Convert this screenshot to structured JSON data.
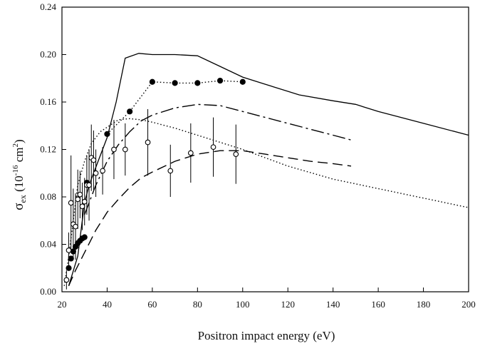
{
  "chart_data": {
    "type": "line",
    "xlabel": "Positron impact energy (eV)",
    "ylabel": {
      "main": "σ",
      "sub": "ex",
      "pre": " (10",
      "sup1": "-16",
      "mid": " cm",
      "sup2": "2",
      "post": ")"
    },
    "xlim": [
      20,
      200
    ],
    "ylim": [
      0.0,
      0.24
    ],
    "x_ticks": [
      20,
      40,
      60,
      80,
      100,
      120,
      140,
      160,
      180,
      200
    ],
    "y_ticks": [
      0.0,
      0.04,
      0.08,
      0.12,
      0.16,
      0.2,
      0.24
    ],
    "y_tick_labels": [
      "0.00",
      "0.04",
      "0.08",
      "0.12",
      "0.16",
      "0.20",
      "0.24"
    ],
    "grid": false,
    "series": [
      {
        "style": "solid",
        "x": [
          23,
          27,
          30,
          32,
          35,
          40,
          44,
          48,
          54,
          60,
          70,
          80,
          90,
          100,
          110,
          125,
          140,
          150,
          160,
          180,
          200
        ],
        "y": [
          0.005,
          0.03,
          0.075,
          0.09,
          0.105,
          0.13,
          0.16,
          0.197,
          0.201,
          0.2,
          0.2,
          0.199,
          0.19,
          0.181,
          0.175,
          0.166,
          0.161,
          0.158,
          0.152,
          0.142,
          0.132
        ]
      },
      {
        "style": "dash-dot",
        "x": [
          30,
          35,
          40,
          45,
          50,
          55,
          60,
          70,
          80,
          90,
          100,
          110,
          120,
          130,
          140,
          148
        ],
        "y": [
          0.065,
          0.09,
          0.11,
          0.124,
          0.135,
          0.144,
          0.149,
          0.155,
          0.158,
          0.157,
          0.152,
          0.147,
          0.142,
          0.137,
          0.132,
          0.128
        ]
      },
      {
        "style": "long-dash",
        "x": [
          23,
          26,
          30,
          35,
          40,
          45,
          50,
          55,
          60,
          70,
          80,
          90,
          100,
          110,
          120,
          130,
          140,
          148
        ],
        "y": [
          0.005,
          0.018,
          0.033,
          0.052,
          0.067,
          0.078,
          0.088,
          0.096,
          0.101,
          0.11,
          0.116,
          0.119,
          0.119,
          0.116,
          0.113,
          0.11,
          0.108,
          0.106
        ]
      },
      {
        "style": "dotted",
        "x": [
          21,
          23,
          25,
          27,
          30,
          33,
          37,
          41,
          45,
          50,
          55,
          60,
          70,
          80,
          90,
          100,
          120,
          140,
          160,
          180,
          200
        ],
        "y": [
          0.005,
          0.03,
          0.06,
          0.09,
          0.11,
          0.125,
          0.135,
          0.14,
          0.145,
          0.146,
          0.145,
          0.143,
          0.138,
          0.132,
          0.126,
          0.12,
          0.106,
          0.095,
          0.087,
          0.079,
          0.071
        ]
      },
      {
        "style": "dotted-filled-markers",
        "marker": "filled-circle",
        "x": [
          40,
          50,
          60,
          70,
          80,
          90,
          100
        ],
        "y": [
          0.133,
          0.152,
          0.177,
          0.176,
          0.176,
          0.178,
          0.177
        ]
      },
      {
        "style": "filled-markers",
        "marker": "filled-circle",
        "x": [
          23,
          24,
          25,
          26,
          27,
          28,
          29,
          30,
          31
        ],
        "y": [
          0.02,
          0.028,
          0.034,
          0.038,
          0.041,
          0.043,
          0.045,
          0.046,
          0.092
        ]
      },
      {
        "style": "open-markers-errorbars",
        "marker": "open-circle",
        "points": [
          {
            "x": 22,
            "y": 0.01,
            "err": 0.008
          },
          {
            "x": 23,
            "y": 0.035,
            "err": 0.015
          },
          {
            "x": 24,
            "y": 0.075,
            "err": 0.04
          },
          {
            "x": 25,
            "y": 0.057,
            "err": 0.03
          },
          {
            "x": 26,
            "y": 0.055,
            "err": 0.028
          },
          {
            "x": 27,
            "y": 0.078,
            "err": 0.025
          },
          {
            "x": 28,
            "y": 0.082,
            "err": 0.02
          },
          {
            "x": 29,
            "y": 0.072,
            "err": 0.02
          },
          {
            "x": 30,
            "y": 0.076,
            "err": 0.02
          },
          {
            "x": 31,
            "y": 0.09,
            "err": 0.025
          },
          {
            "x": 32,
            "y": 0.09,
            "err": 0.03
          },
          {
            "x": 33,
            "y": 0.113,
            "err": 0.028
          },
          {
            "x": 34,
            "y": 0.111,
            "err": 0.025
          },
          {
            "x": 35,
            "y": 0.1,
            "err": 0.02
          },
          {
            "x": 38,
            "y": 0.102,
            "err": 0.02
          },
          {
            "x": 43,
            "y": 0.12,
            "err": 0.025
          },
          {
            "x": 48,
            "y": 0.12,
            "err": 0.022
          },
          {
            "x": 58,
            "y": 0.126,
            "err": 0.028
          },
          {
            "x": 68,
            "y": 0.102,
            "err": 0.022
          },
          {
            "x": 77,
            "y": 0.117,
            "err": 0.025
          },
          {
            "x": 87,
            "y": 0.122,
            "err": 0.025
          },
          {
            "x": 97,
            "y": 0.116,
            "err": 0.025
          }
        ]
      }
    ]
  }
}
